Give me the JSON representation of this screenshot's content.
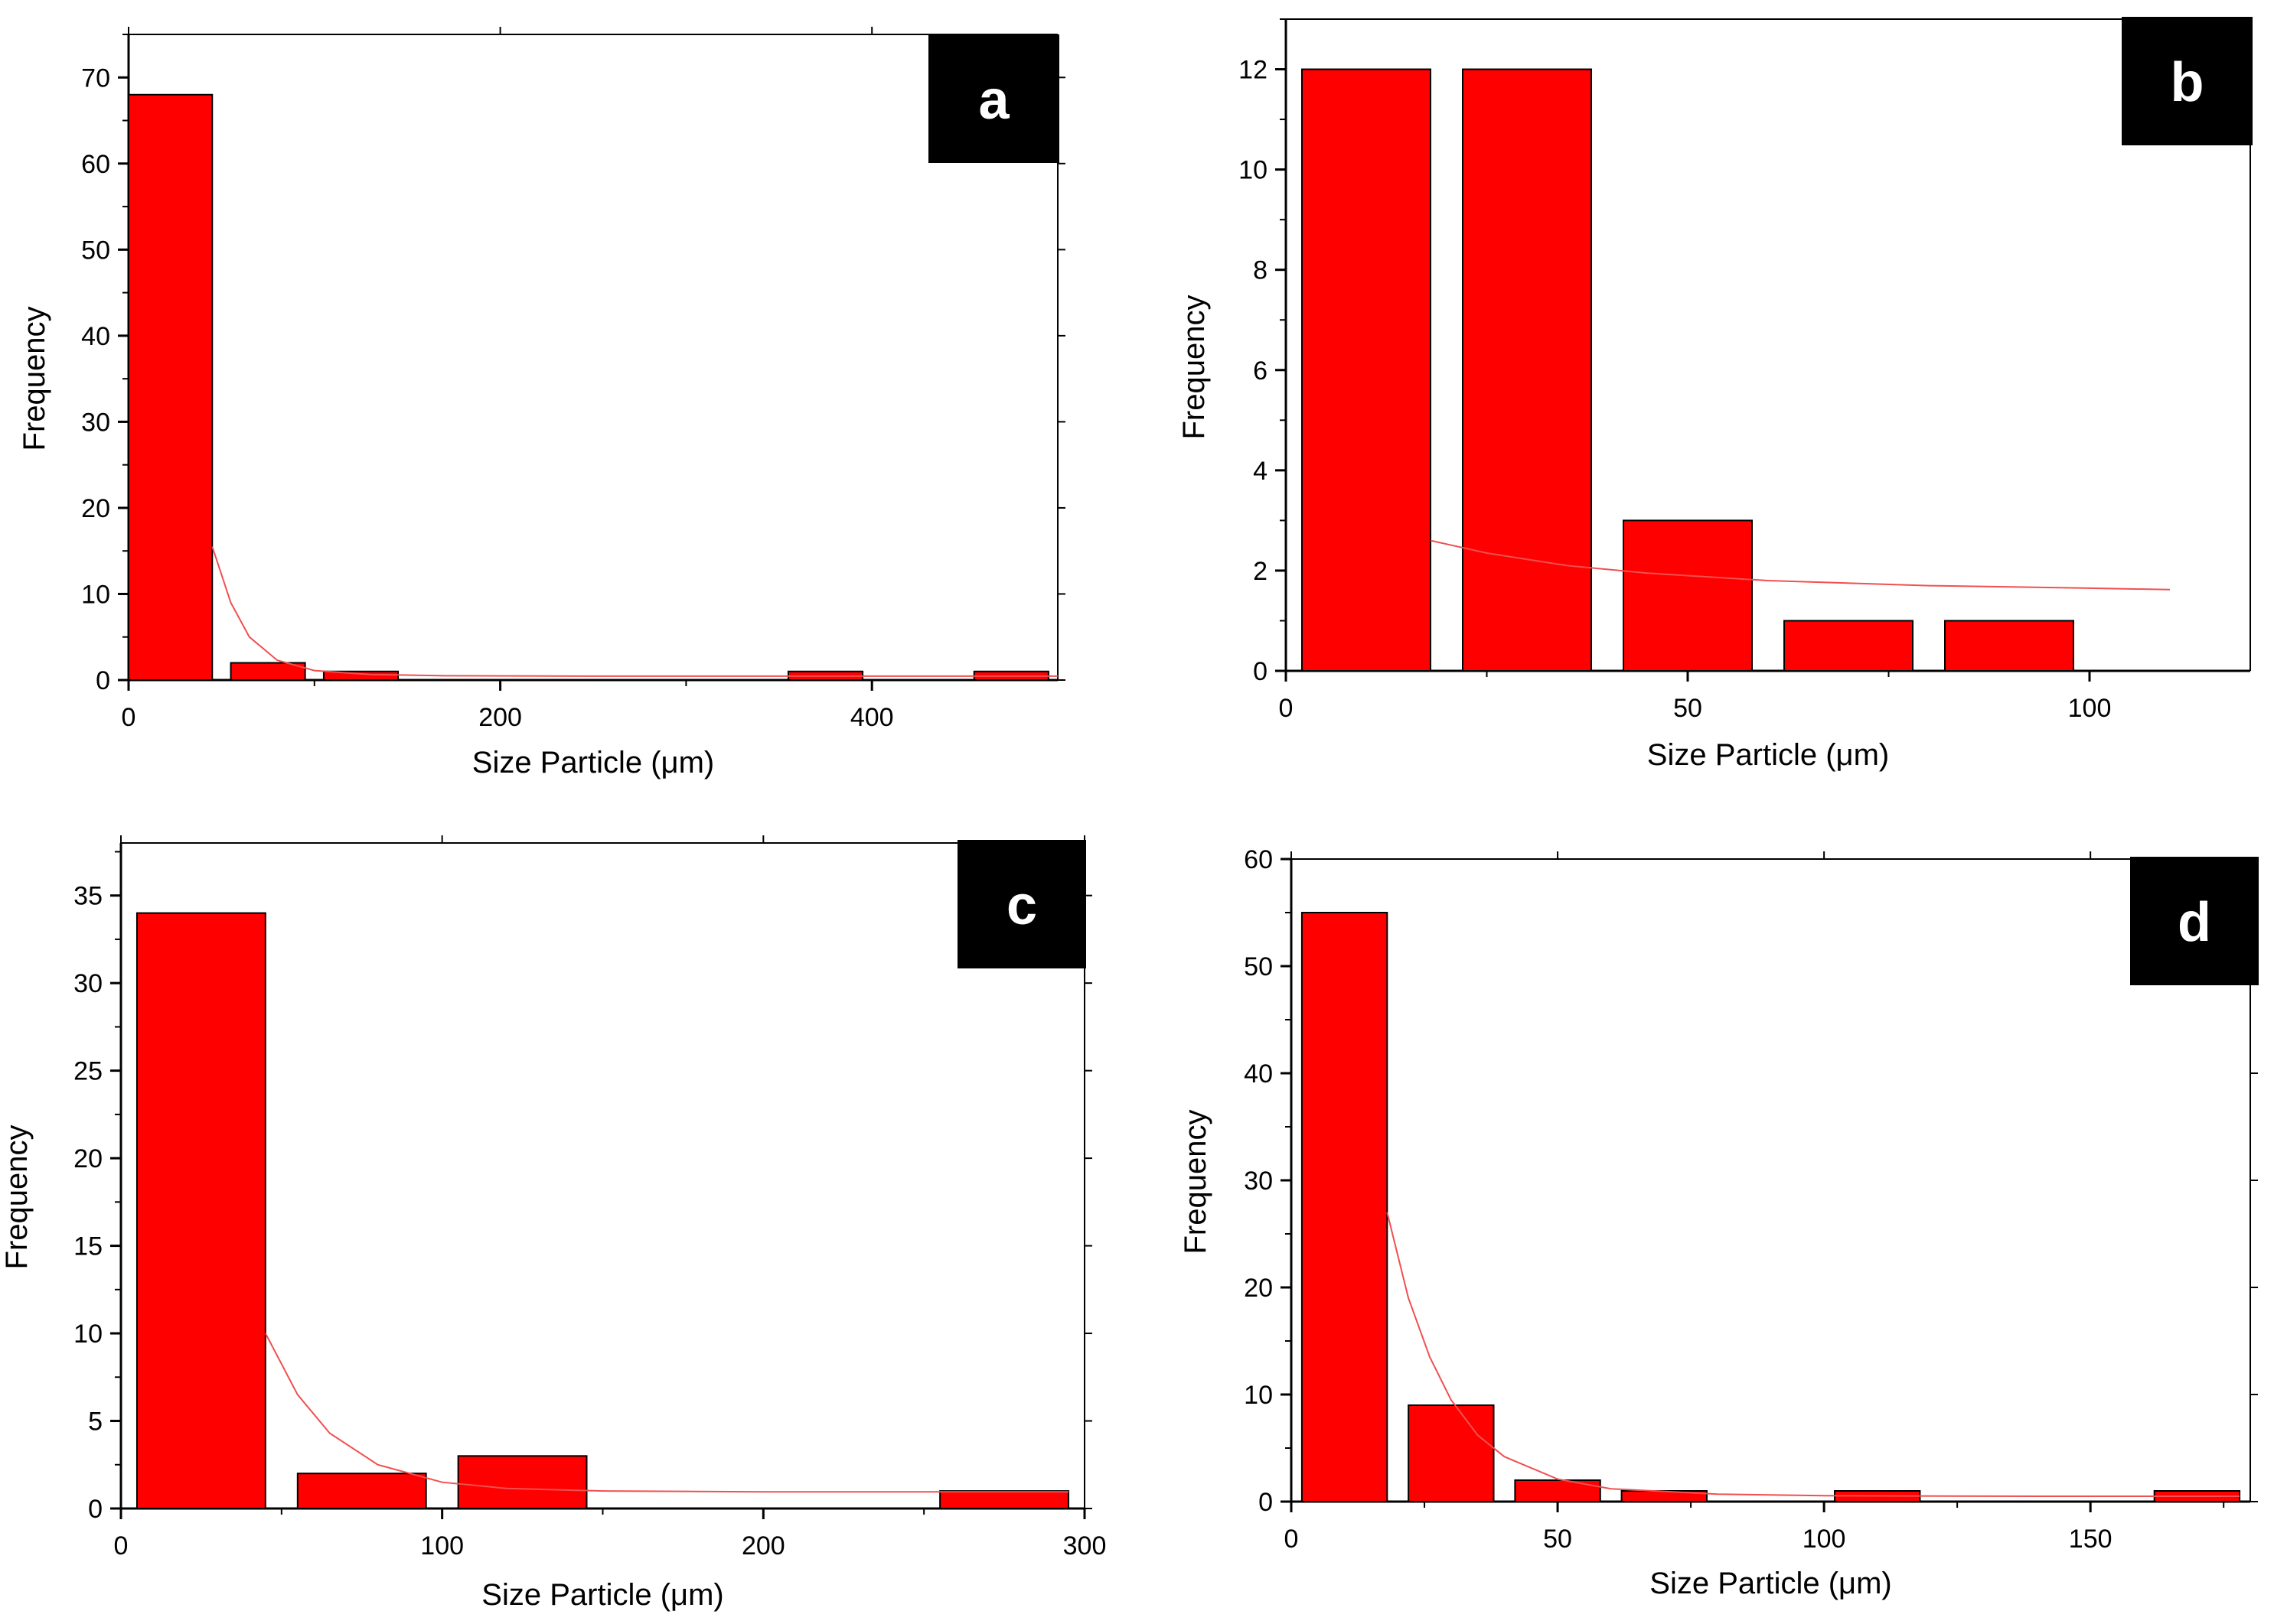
{
  "chart_data": [
    {
      "type": "bar",
      "panel_label": "a",
      "xlabel": "Size Particle (μm)",
      "ylabel": "Frequency",
      "xlim": [
        0,
        500
      ],
      "ylim": [
        0,
        75
      ],
      "xticks": [
        "0",
        "200",
        "400"
      ],
      "yticks": [
        "0",
        "10",
        "20",
        "30",
        "40",
        "50",
        "60",
        "70"
      ],
      "bins": [
        {
          "x0": 0,
          "x1": 45,
          "count": 68
        },
        {
          "x0": 55,
          "x1": 95,
          "count": 2
        },
        {
          "x0": 105,
          "x1": 145,
          "count": 1
        },
        {
          "x0": 355,
          "x1": 395,
          "count": 1
        },
        {
          "x0": 455,
          "x1": 495,
          "count": 1
        }
      ],
      "fit_curve": {
        "x": [
          45,
          55,
          65,
          80,
          100,
          130,
          170,
          250,
          350,
          500
        ],
        "y": [
          15.5,
          9,
          5,
          2.3,
          1.1,
          0.65,
          0.5,
          0.45,
          0.45,
          0.45
        ]
      },
      "bar_color": "#ff0000",
      "fit_color": "#f05050",
      "grid": false
    },
    {
      "type": "bar",
      "panel_label": "b",
      "xlabel": "Size Particle (μm)",
      "ylabel": "Frequency",
      "xlim": [
        0,
        120
      ],
      "ylim": [
        0,
        13
      ],
      "xticks": [
        "0",
        "50",
        "100"
      ],
      "yticks": [
        "0",
        "2",
        "4",
        "6",
        "8",
        "10",
        "12"
      ],
      "bins": [
        {
          "x0": 2,
          "x1": 18,
          "count": 12
        },
        {
          "x0": 22,
          "x1": 38,
          "count": 12
        },
        {
          "x0": 42,
          "x1": 58,
          "count": 3
        },
        {
          "x0": 62,
          "x1": 78,
          "count": 1
        },
        {
          "x0": 82,
          "x1": 98,
          "count": 1
        }
      ],
      "fit_curve": {
        "x": [
          18,
          25,
          35,
          45,
          60,
          80,
          100,
          110
        ],
        "y": [
          2.6,
          2.35,
          2.1,
          1.95,
          1.8,
          1.7,
          1.65,
          1.62
        ]
      },
      "bar_color": "#ff0000",
      "fit_color": "#f05050",
      "grid": false
    },
    {
      "type": "bar",
      "panel_label": "c",
      "xlabel": "Size Particle (μm)",
      "ylabel": "Frequency",
      "xlim": [
        0,
        300
      ],
      "ylim": [
        0,
        38
      ],
      "xticks": [
        "0",
        "100",
        "200",
        "300"
      ],
      "yticks": [
        "0",
        "5",
        "10",
        "15",
        "20",
        "25",
        "30",
        "35"
      ],
      "bins": [
        {
          "x0": 5,
          "x1": 45,
          "count": 34
        },
        {
          "x0": 55,
          "x1": 95,
          "count": 2
        },
        {
          "x0": 105,
          "x1": 145,
          "count": 3
        },
        {
          "x0": 255,
          "x1": 295,
          "count": 1
        }
      ],
      "fit_curve": {
        "x": [
          45,
          55,
          65,
          80,
          100,
          120,
          150,
          200,
          250,
          295
        ],
        "y": [
          10,
          6.5,
          4.3,
          2.5,
          1.5,
          1.15,
          1.0,
          0.95,
          0.95,
          0.95
        ]
      },
      "bar_color": "#ff0000",
      "fit_color": "#f05050",
      "grid": false
    },
    {
      "type": "bar",
      "panel_label": "d",
      "xlabel": "Size Particle (μm)",
      "ylabel": "Frequency",
      "xlim": [
        0,
        180
      ],
      "ylim": [
        0,
        60
      ],
      "xticks": [
        "0",
        "50",
        "100",
        "150"
      ],
      "yticks": [
        "0",
        "10",
        "20",
        "30",
        "40",
        "50",
        "60"
      ],
      "bins": [
        {
          "x0": 2,
          "x1": 18,
          "count": 55
        },
        {
          "x0": 22,
          "x1": 38,
          "count": 9
        },
        {
          "x0": 42,
          "x1": 58,
          "count": 2
        },
        {
          "x0": 62,
          "x1": 78,
          "count": 1
        },
        {
          "x0": 102,
          "x1": 118,
          "count": 1
        },
        {
          "x0": 162,
          "x1": 178,
          "count": 1
        }
      ],
      "fit_curve": {
        "x": [
          18,
          22,
          26,
          30,
          35,
          40,
          50,
          60,
          80,
          100,
          140,
          178
        ],
        "y": [
          27,
          19,
          13.5,
          9.5,
          6.2,
          4.2,
          2.1,
          1.2,
          0.7,
          0.55,
          0.5,
          0.5
        ]
      },
      "bar_color": "#ff0000",
      "fit_color": "#f05050",
      "grid": false
    }
  ]
}
